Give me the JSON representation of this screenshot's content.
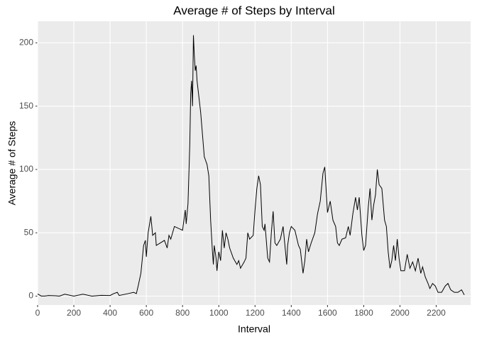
{
  "chart_data": {
    "type": "line",
    "title": "Average # of Steps by Interval",
    "x_label": "Interval",
    "y_label": "Average # of Steps",
    "x": [
      0,
      20,
      40,
      60,
      100,
      120,
      150,
      200,
      250,
      300,
      350,
      400,
      420,
      440,
      450,
      500,
      530,
      545,
      555,
      570,
      585,
      595,
      600,
      610,
      625,
      635,
      650,
      655,
      700,
      715,
      725,
      735,
      745,
      755,
      800,
      815,
      820,
      830,
      840,
      845,
      850,
      855,
      860,
      865,
      870,
      875,
      880,
      900,
      920,
      935,
      945,
      955,
      965,
      970,
      975,
      985,
      990,
      1000,
      1010,
      1020,
      1030,
      1040,
      1050,
      1060,
      1080,
      1100,
      1110,
      1120,
      1140,
      1150,
      1160,
      1170,
      1190,
      1200,
      1210,
      1220,
      1230,
      1240,
      1250,
      1255,
      1270,
      1280,
      1290,
      1300,
      1310,
      1320,
      1340,
      1355,
      1365,
      1375,
      1380,
      1390,
      1400,
      1420,
      1440,
      1450,
      1465,
      1475,
      1485,
      1495,
      1510,
      1530,
      1545,
      1560,
      1575,
      1585,
      1595,
      1600,
      1615,
      1630,
      1645,
      1655,
      1665,
      1680,
      1700,
      1715,
      1725,
      1740,
      1755,
      1765,
      1775,
      1790,
      1800,
      1810,
      1825,
      1835,
      1845,
      1855,
      1865,
      1875,
      1885,
      1900,
      1915,
      1925,
      1935,
      1945,
      1955,
      1965,
      1975,
      1985,
      1995,
      2005,
      2025,
      2040,
      2055,
      2070,
      2085,
      2100,
      2115,
      2125,
      2140,
      2155,
      2165,
      2180,
      2195,
      2210,
      2230,
      2250,
      2265,
      2280,
      2300,
      2320,
      2340,
      2355
    ],
    "values": [
      1.7,
      0.1,
      0.1,
      0.5,
      0.3,
      0,
      1.5,
      0,
      1.5,
      0,
      0.6,
      0.5,
      2,
      3,
      0.5,
      2,
      3,
      2,
      8,
      18,
      40,
      44,
      31,
      50,
      63,
      48,
      50,
      40,
      44,
      38,
      48,
      45,
      50,
      55,
      52,
      68,
      57,
      73,
      120,
      160,
      170,
      150,
      206,
      190,
      178,
      182,
      170,
      145,
      110,
      104,
      95,
      60,
      35,
      25,
      40,
      30,
      20,
      35,
      28,
      52,
      38,
      50,
      45,
      38,
      30,
      25,
      28,
      22,
      27,
      30,
      50,
      45,
      48,
      68,
      85,
      95,
      88,
      55,
      52,
      57,
      30,
      27,
      50,
      67,
      42,
      40,
      45,
      55,
      40,
      25,
      40,
      50,
      55,
      52,
      40,
      37,
      18,
      28,
      45,
      35,
      42,
      50,
      65,
      75,
      97,
      102,
      78,
      66,
      75,
      60,
      55,
      42,
      40,
      45,
      46,
      55,
      48,
      65,
      78,
      68,
      78,
      48,
      36,
      40,
      70,
      85,
      60,
      72,
      80,
      100,
      88,
      85,
      60,
      55,
      35,
      22,
      28,
      40,
      28,
      45,
      30,
      20,
      20,
      33,
      22,
      27,
      20,
      30,
      18,
      23,
      15,
      10,
      6,
      10,
      8,
      3,
      3,
      8,
      10,
      5,
      3,
      3,
      5,
      1
    ],
    "color": "#000000",
    "xlim": [
      0,
      2390
    ],
    "ylim": [
      -7,
      217
    ],
    "xticks": [
      0,
      200,
      400,
      600,
      800,
      1000,
      1200,
      1400,
      1600,
      1800,
      2000,
      2200
    ],
    "yticks": [
      0,
      50,
      100,
      150,
      200
    ],
    "grid": true
  }
}
